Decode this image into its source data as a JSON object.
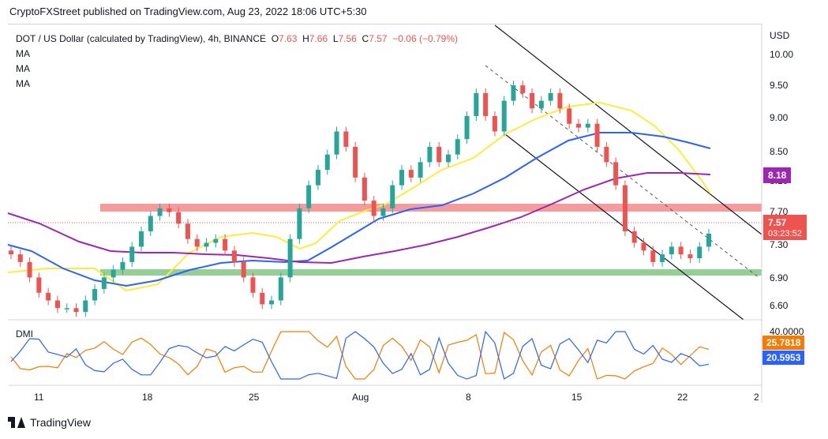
{
  "header": {
    "publisher": "CryptoFXStreet published on TradingView.com, Aug 23, 2022 18:06 UTC+5:30"
  },
  "legend": {
    "symbol": "DOT / US Dollar (calculated by TradingView), 4h, BINANCE",
    "ohlc": [
      {
        "k": "O",
        "v": "7.63"
      },
      {
        "k": "H",
        "v": "7.66"
      },
      {
        "k": "L",
        "v": "7.56"
      },
      {
        "k": "C",
        "v": "7.57"
      }
    ],
    "change": "−0.06 (−0.79%)",
    "indicators": [
      "MA",
      "MA",
      "MA"
    ],
    "dmi": "DMI"
  },
  "axis": {
    "currency": "USD",
    "price_ticks": [
      "10.00",
      "9.50",
      "9.00",
      "8.50",
      "8.10",
      "7.70",
      "7.30",
      "6.90",
      "6.60"
    ],
    "dmi_ticks": [
      "40.0000"
    ],
    "x_ticks": [
      "11",
      "18",
      "25",
      "Aug",
      "8",
      "15",
      "22",
      "2"
    ]
  },
  "tags": {
    "ma200": "8.18",
    "last_price": "7.57",
    "countdown": "03:23:52",
    "dmi_plus": "25.7818",
    "dmi_minus": "20.5953"
  },
  "colors": {
    "up": "#26a69a",
    "down": "#ef5350",
    "ma_fast": "#ffeb3b",
    "ma_mid": "#2962ff",
    "ma_slow": "#9c27b0",
    "resistance": "#f28b8b",
    "support": "#81c784",
    "dmi_plus": "#f57c00",
    "dmi_minus": "#2962ff"
  },
  "footer": {
    "brand": "TradingView"
  },
  "chart_data": {
    "type": "candlestick",
    "timeframe": "4h",
    "x_labels": [
      "11",
      "18",
      "25",
      "Aug",
      "8",
      "15",
      "22"
    ],
    "y_range": [
      6.5,
      10.2
    ],
    "closes": [
      7.3,
      7.2,
      7.0,
      6.8,
      6.7,
      6.6,
      6.6,
      6.55,
      6.7,
      6.85,
      7.0,
      7.1,
      7.2,
      7.4,
      7.6,
      7.8,
      7.9,
      7.85,
      7.7,
      7.5,
      7.4,
      7.45,
      7.5,
      7.35,
      7.2,
      7.0,
      6.8,
      6.65,
      6.7,
      7.0,
      7.5,
      7.9,
      8.2,
      8.4,
      8.6,
      8.9,
      8.7,
      8.3,
      8.0,
      7.8,
      7.9,
      8.2,
      8.4,
      8.3,
      8.5,
      8.7,
      8.5,
      8.6,
      8.8,
      9.1,
      9.4,
      9.1,
      8.9,
      9.3,
      9.5,
      9.4,
      9.2,
      9.3,
      9.4,
      9.2,
      9.0,
      8.95,
      9.0,
      8.7,
      8.5,
      8.2,
      7.6,
      7.45,
      7.35,
      7.2,
      7.3,
      7.4,
      7.3,
      7.25,
      7.4,
      7.57
    ],
    "moving_averages": [
      {
        "name": "MA",
        "color": "#ffeb3b"
      },
      {
        "name": "MA",
        "color": "#2962ff"
      },
      {
        "name": "MA",
        "color": "#9c27b0",
        "last": 8.18
      }
    ],
    "zones": [
      {
        "type": "resistance",
        "from": 7.7,
        "to": 7.82
      },
      {
        "type": "support",
        "from": 6.92,
        "to": 7.0
      }
    ],
    "last_price": 7.57,
    "dmi": {
      "plus_di": 25.7818,
      "minus_di": 20.5953
    }
  }
}
